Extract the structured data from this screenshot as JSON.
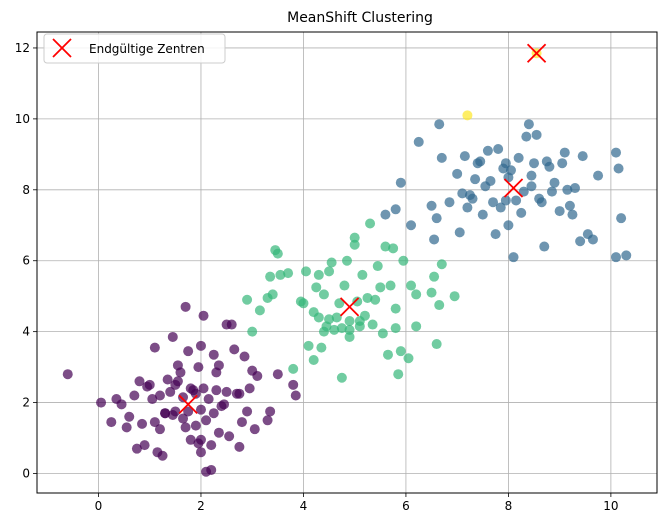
{
  "chart_data": {
    "type": "scatter",
    "title": "MeanShift Clustering",
    "xlabel": "",
    "ylabel": "",
    "xlim": [
      -1.2,
      10.9
    ],
    "ylim": [
      -0.55,
      12.45
    ],
    "xticks": [
      0,
      2,
      4,
      6,
      8,
      10
    ],
    "yticks": [
      0,
      2,
      4,
      6,
      8,
      10,
      12
    ],
    "grid": true,
    "legend": {
      "placement": "top-left",
      "entries": [
        "Endgültige Zentren"
      ]
    },
    "colors": {
      "cluster_0": "#440154",
      "cluster_1": "#31688e",
      "cluster_2": "#35b779",
      "cluster_3": "#fde725",
      "centers": "#ff0000"
    },
    "clusters": [
      {
        "label": 0,
        "color": "#440154",
        "points": [
          [
            -0.6,
            2.8
          ],
          [
            0.05,
            2.0
          ],
          [
            0.25,
            1.45
          ],
          [
            0.35,
            2.1
          ],
          [
            0.45,
            1.95
          ],
          [
            0.55,
            1.3
          ],
          [
            0.6,
            1.6
          ],
          [
            0.7,
            2.2
          ],
          [
            0.75,
            0.7
          ],
          [
            0.8,
            2.6
          ],
          [
            0.85,
            1.4
          ],
          [
            0.9,
            0.8
          ],
          [
            0.95,
            2.45
          ],
          [
            1.0,
            2.5
          ],
          [
            1.05,
            2.1
          ],
          [
            1.1,
            3.55
          ],
          [
            1.1,
            1.45
          ],
          [
            1.15,
            0.6
          ],
          [
            1.2,
            1.25
          ],
          [
            1.2,
            2.2
          ],
          [
            1.25,
            0.5
          ],
          [
            1.3,
            1.7
          ],
          [
            1.35,
            2.65
          ],
          [
            1.4,
            2.3
          ],
          [
            1.45,
            1.65
          ],
          [
            1.45,
            3.85
          ],
          [
            1.5,
            2.5
          ],
          [
            1.5,
            1.75
          ],
          [
            1.55,
            2.6
          ],
          [
            1.55,
            3.05
          ],
          [
            1.6,
            2.85
          ],
          [
            1.65,
            1.55
          ],
          [
            1.65,
            2.15
          ],
          [
            1.7,
            1.3
          ],
          [
            1.7,
            4.7
          ],
          [
            1.75,
            1.75
          ],
          [
            1.75,
            3.45
          ],
          [
            1.8,
            2.4
          ],
          [
            1.8,
            0.95
          ],
          [
            1.85,
            2.35
          ],
          [
            1.9,
            1.35
          ],
          [
            1.9,
            2.25
          ],
          [
            1.95,
            3.0
          ],
          [
            1.95,
            0.85
          ],
          [
            2.0,
            1.8
          ],
          [
            2.0,
            3.6
          ],
          [
            2.0,
            0.95
          ],
          [
            2.05,
            4.45
          ],
          [
            2.05,
            2.4
          ],
          [
            2.1,
            0.05
          ],
          [
            2.1,
            1.5
          ],
          [
            2.15,
            2.1
          ],
          [
            2.2,
            0.1
          ],
          [
            2.2,
            0.8
          ],
          [
            2.25,
            1.7
          ],
          [
            2.25,
            3.35
          ],
          [
            2.3,
            2.35
          ],
          [
            2.3,
            2.85
          ],
          [
            2.35,
            1.15
          ],
          [
            2.35,
            3.05
          ],
          [
            2.4,
            1.9
          ],
          [
            2.45,
            1.95
          ],
          [
            2.5,
            2.3
          ],
          [
            2.5,
            4.2
          ],
          [
            2.55,
            1.05
          ],
          [
            2.6,
            4.2
          ],
          [
            2.65,
            3.5
          ],
          [
            2.7,
            2.25
          ],
          [
            2.75,
            2.25
          ],
          [
            2.75,
            0.75
          ],
          [
            2.8,
            1.45
          ],
          [
            2.85,
            3.3
          ],
          [
            2.9,
            1.75
          ],
          [
            2.95,
            2.4
          ],
          [
            3.0,
            2.9
          ],
          [
            3.05,
            1.25
          ],
          [
            3.1,
            2.75
          ],
          [
            3.3,
            1.5
          ],
          [
            3.35,
            1.75
          ],
          [
            3.5,
            2.8
          ],
          [
            3.8,
            2.5
          ],
          [
            3.85,
            2.2
          ],
          [
            2.0,
            0.6
          ],
          [
            1.3,
            1.7
          ]
        ]
      },
      {
        "label": 2,
        "color": "#35b779",
        "points": [
          [
            2.9,
            4.9
          ],
          [
            3.0,
            4.0
          ],
          [
            3.15,
            4.6
          ],
          [
            3.3,
            4.95
          ],
          [
            3.35,
            5.55
          ],
          [
            3.4,
            5.05
          ],
          [
            3.45,
            6.3
          ],
          [
            3.5,
            6.2
          ],
          [
            3.55,
            5.6
          ],
          [
            3.7,
            5.65
          ],
          [
            3.8,
            2.95
          ],
          [
            3.95,
            4.85
          ],
          [
            4.0,
            4.8
          ],
          [
            4.05,
            5.7
          ],
          [
            4.1,
            3.6
          ],
          [
            4.2,
            4.55
          ],
          [
            4.2,
            3.2
          ],
          [
            4.25,
            5.25
          ],
          [
            4.3,
            5.6
          ],
          [
            4.35,
            3.55
          ],
          [
            4.4,
            4.0
          ],
          [
            4.4,
            5.05
          ],
          [
            4.45,
            4.15
          ],
          [
            4.5,
            5.7
          ],
          [
            4.5,
            4.35
          ],
          [
            4.55,
            5.95
          ],
          [
            4.6,
            4.05
          ],
          [
            4.65,
            4.4
          ],
          [
            4.7,
            4.8
          ],
          [
            4.75,
            2.7
          ],
          [
            4.75,
            4.1
          ],
          [
            4.8,
            5.3
          ],
          [
            4.85,
            6.0
          ],
          [
            4.9,
            3.85
          ],
          [
            4.9,
            4.05
          ],
          [
            5.0,
            6.45
          ],
          [
            5.0,
            6.65
          ],
          [
            5.05,
            4.85
          ],
          [
            5.1,
            4.15
          ],
          [
            5.15,
            5.6
          ],
          [
            5.2,
            4.45
          ],
          [
            5.25,
            4.95
          ],
          [
            5.3,
            7.05
          ],
          [
            5.35,
            4.2
          ],
          [
            5.4,
            4.9
          ],
          [
            5.45,
            5.85
          ],
          [
            5.5,
            5.25
          ],
          [
            5.55,
            3.95
          ],
          [
            5.6,
            6.4
          ],
          [
            5.65,
            3.35
          ],
          [
            5.7,
            5.3
          ],
          [
            5.75,
            6.35
          ],
          [
            5.8,
            4.1
          ],
          [
            5.8,
            4.65
          ],
          [
            5.85,
            2.8
          ],
          [
            5.9,
            3.45
          ],
          [
            5.95,
            6.0
          ],
          [
            6.05,
            3.25
          ],
          [
            6.1,
            5.3
          ],
          [
            6.2,
            4.15
          ],
          [
            6.2,
            5.05
          ],
          [
            6.5,
            5.1
          ],
          [
            6.55,
            5.55
          ],
          [
            6.6,
            3.65
          ],
          [
            6.65,
            4.75
          ],
          [
            6.7,
            5.9
          ],
          [
            6.95,
            5.0
          ],
          [
            4.9,
            4.3
          ],
          [
            4.3,
            4.4
          ],
          [
            5.1,
            4.3
          ]
        ]
      },
      {
        "label": 1,
        "color": "#31688e",
        "points": [
          [
            5.6,
            7.3
          ],
          [
            5.8,
            7.45
          ],
          [
            5.9,
            8.2
          ],
          [
            6.1,
            7.0
          ],
          [
            6.25,
            9.35
          ],
          [
            6.5,
            7.55
          ],
          [
            6.55,
            6.6
          ],
          [
            6.6,
            7.2
          ],
          [
            6.65,
            9.85
          ],
          [
            6.7,
            8.9
          ],
          [
            6.85,
            7.65
          ],
          [
            7.0,
            8.45
          ],
          [
            7.05,
            6.8
          ],
          [
            7.1,
            7.9
          ],
          [
            7.15,
            8.95
          ],
          [
            7.2,
            7.5
          ],
          [
            7.25,
            7.85
          ],
          [
            7.3,
            7.75
          ],
          [
            7.35,
            8.3
          ],
          [
            7.4,
            8.75
          ],
          [
            7.45,
            8.8
          ],
          [
            7.5,
            7.3
          ],
          [
            7.55,
            8.1
          ],
          [
            7.6,
            9.1
          ],
          [
            7.65,
            8.25
          ],
          [
            7.7,
            7.65
          ],
          [
            7.75,
            6.75
          ],
          [
            7.8,
            9.15
          ],
          [
            7.85,
            7.5
          ],
          [
            7.9,
            8.6
          ],
          [
            7.95,
            8.75
          ],
          [
            8.0,
            7.0
          ],
          [
            8.05,
            8.55
          ],
          [
            8.1,
            6.1
          ],
          [
            8.15,
            7.7
          ],
          [
            8.2,
            8.9
          ],
          [
            8.3,
            7.95
          ],
          [
            8.35,
            9.5
          ],
          [
            8.4,
            9.85
          ],
          [
            8.45,
            8.4
          ],
          [
            8.5,
            8.75
          ],
          [
            8.55,
            9.55
          ],
          [
            8.6,
            7.75
          ],
          [
            8.65,
            7.65
          ],
          [
            8.7,
            6.4
          ],
          [
            8.75,
            8.8
          ],
          [
            8.8,
            8.65
          ],
          [
            8.85,
            7.95
          ],
          [
            8.9,
            8.2
          ],
          [
            9.0,
            7.4
          ],
          [
            9.05,
            8.75
          ],
          [
            9.1,
            9.05
          ],
          [
            9.15,
            8.0
          ],
          [
            9.2,
            7.55
          ],
          [
            9.25,
            7.3
          ],
          [
            9.3,
            8.05
          ],
          [
            9.4,
            6.55
          ],
          [
            9.45,
            8.95
          ],
          [
            9.55,
            6.75
          ],
          [
            9.65,
            6.6
          ],
          [
            9.75,
            8.4
          ],
          [
            10.1,
            9.05
          ],
          [
            10.1,
            6.1
          ],
          [
            10.15,
            8.6
          ],
          [
            10.2,
            7.2
          ],
          [
            10.3,
            6.15
          ],
          [
            8.25,
            7.35
          ],
          [
            7.95,
            7.7
          ],
          [
            8.45,
            8.1
          ],
          [
            8.0,
            8.35
          ]
        ]
      },
      {
        "label": 3,
        "color": "#fde725",
        "points": [
          [
            7.2,
            10.1
          ],
          [
            8.55,
            11.85
          ]
        ]
      }
    ],
    "centers": [
      [
        1.75,
        1.95
      ],
      [
        4.9,
        4.7
      ],
      [
        8.1,
        8.05
      ],
      [
        8.55,
        11.85
      ]
    ]
  }
}
